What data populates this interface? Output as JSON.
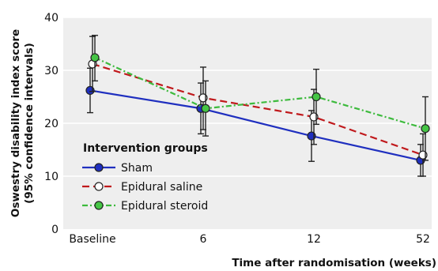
{
  "chart_data": {
    "type": "line",
    "xlabel": "Time after randomisation (weeks)",
    "ylabel_line1": "Oswestry disability index score",
    "ylabel_line2": "(95% confidence intervals)",
    "ylim": [
      0,
      40
    ],
    "yticks": [
      0,
      10,
      20,
      30,
      40
    ],
    "categories": [
      "Baseline",
      "6",
      "12",
      "52"
    ],
    "grid": true,
    "legend_title": "Intervention groups",
    "legend_position": "bottom-left",
    "series": [
      {
        "name": "Sham",
        "color": "#1f2fbf",
        "marker_fill": "#1f2fbf",
        "line_style": "solid",
        "values": [
          26.2,
          22.8,
          17.6,
          13.0
        ],
        "ci_low": [
          22.0,
          18.0,
          12.8,
          10.0
        ],
        "ci_high": [
          30.4,
          27.6,
          22.4,
          16.0
        ]
      },
      {
        "name": "Epidural saline",
        "color": "#c0191c",
        "marker_fill": "#ffffff",
        "line_style": "dashed",
        "values": [
          31.2,
          24.8,
          21.2,
          14.0
        ],
        "ci_low": [
          26.0,
          18.8,
          16.0,
          10.0
        ],
        "ci_high": [
          36.4,
          30.6,
          26.4,
          18.0
        ]
      },
      {
        "name": "Epidural steroid",
        "color": "#3dba3d",
        "marker_fill": "#45c545",
        "line_style": "dashdot",
        "values": [
          32.4,
          22.8,
          25.0,
          19.0
        ],
        "ci_low": [
          28.0,
          17.6,
          19.8,
          13.0
        ],
        "ci_high": [
          36.6,
          28.0,
          30.2,
          25.0
        ]
      }
    ]
  }
}
